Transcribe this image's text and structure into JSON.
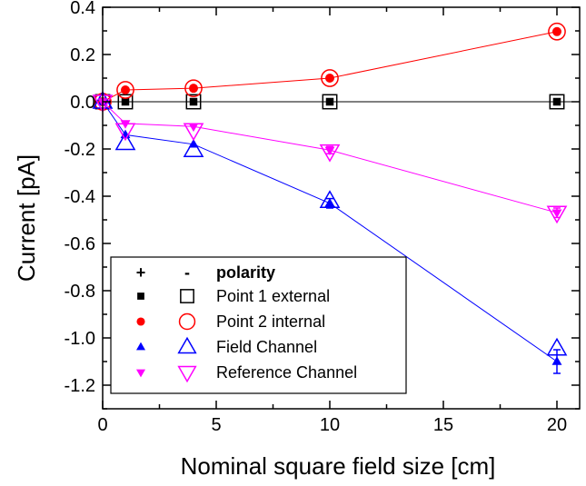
{
  "chart_data": {
    "type": "scatter",
    "title": "",
    "xlabel": "Nominal square field size [cm]",
    "ylabel": "Current [pA]",
    "xlim": [
      0,
      21
    ],
    "ylim": [
      -1.3,
      0.4
    ],
    "xticks": [
      0,
      5,
      10,
      15,
      20
    ],
    "yticks": [
      0.4,
      0.2,
      0.0,
      -0.2,
      -0.4,
      -0.6,
      -0.8,
      -1.0,
      -1.2
    ],
    "ytick_labels": [
      "0.4",
      "0.2",
      "0.0",
      "-0.2",
      "-0.4",
      "-0.6",
      "-0.8",
      "-1.0",
      "-1.2"
    ],
    "xtick_labels": [
      "0",
      "5",
      "10",
      "15",
      "20"
    ],
    "grid": false,
    "legend_position": "bottom-left",
    "legend_header": {
      "plus": "+",
      "minus": "-",
      "label": "polarity"
    },
    "series": [
      {
        "name": "Point 1 external",
        "color": "#000000",
        "marker": "square",
        "x": [
          0,
          1,
          4,
          10,
          20
        ],
        "y_plus": [
          0.0,
          0.0,
          0.0,
          0.0,
          0.0
        ],
        "y_minus": [
          0.0,
          0.0,
          0.0,
          0.0,
          0.0
        ]
      },
      {
        "name": "Point 2 internal",
        "color": "#ff0000",
        "marker": "circle",
        "x": [
          0,
          1,
          4,
          10,
          20
        ],
        "y_plus": [
          0.0,
          0.05,
          0.057,
          0.1,
          0.297
        ],
        "y_minus": [
          0.0,
          0.05,
          0.057,
          0.1,
          0.297
        ]
      },
      {
        "name": "Field Channel",
        "color": "#0000ff",
        "marker": "triangle-up",
        "x": [
          0,
          1,
          4,
          10,
          20
        ],
        "y_plus": [
          0.0,
          -0.14,
          -0.18,
          -0.43,
          -1.1
        ],
        "y_minus": [
          0.0,
          -0.175,
          -0.205,
          -0.42,
          -1.045
        ],
        "error": [
          0,
          0,
          0,
          0.02,
          0.05
        ]
      },
      {
        "name": "Reference Channel",
        "color": "#ff00ff",
        "marker": "triangle-down",
        "x": [
          0,
          1,
          4,
          10,
          20
        ],
        "y_plus": [
          0.0,
          -0.092,
          -0.105,
          -0.205,
          -0.47
        ],
        "y_minus": [
          0.0,
          -0.12,
          -0.12,
          -0.21,
          -0.47
        ],
        "error": [
          0,
          0,
          0,
          0.015,
          0.02
        ]
      }
    ]
  }
}
